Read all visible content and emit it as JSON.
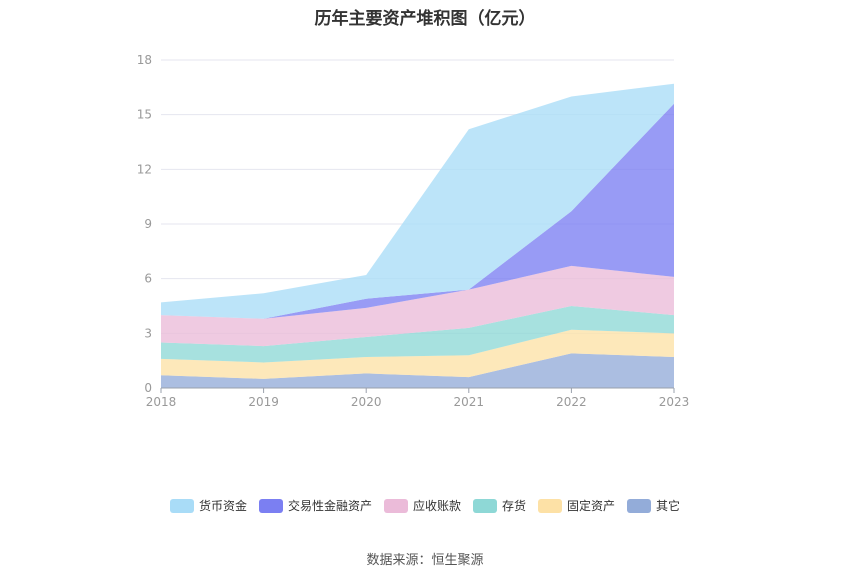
{
  "chart_data": {
    "type": "area",
    "stacked": true,
    "title": "历年主要资产堆积图（亿元）",
    "categories": [
      "2018",
      "2019",
      "2020",
      "2021",
      "2022",
      "2023"
    ],
    "ylim": [
      0,
      18
    ],
    "yticks": [
      0,
      3,
      6,
      9,
      12,
      15,
      18
    ],
    "grid": true,
    "legend_position": "bottom",
    "series": [
      {
        "name": "其它",
        "color": "#93acd9",
        "values": [
          0.7,
          0.5,
          0.8,
          0.6,
          1.9,
          1.7
        ]
      },
      {
        "name": "固定资产",
        "color": "#fde1a6",
        "values": [
          0.9,
          0.9,
          0.9,
          1.2,
          1.3,
          1.3
        ]
      },
      {
        "name": "存货",
        "color": "#8ed8d6",
        "values": [
          0.9,
          0.9,
          1.1,
          1.5,
          1.3,
          1.0
        ]
      },
      {
        "name": "应收账款",
        "color": "#ebbbd9",
        "values": [
          1.5,
          1.5,
          1.6,
          2.1,
          2.2,
          2.1
        ]
      },
      {
        "name": "交易性金融资产",
        "color": "#7b7ff2",
        "values": [
          0.0,
          0.0,
          0.5,
          0.0,
          3.0,
          9.5
        ]
      },
      {
        "name": "货币资金",
        "color": "#a9dcf7",
        "values": [
          0.7,
          1.4,
          1.3,
          8.8,
          6.3,
          1.1
        ]
      }
    ],
    "legend_order": [
      "货币资金",
      "交易性金融资产",
      "应收账款",
      "存货",
      "固定资产",
      "其它"
    ]
  },
  "source": "数据来源：恒生聚源"
}
